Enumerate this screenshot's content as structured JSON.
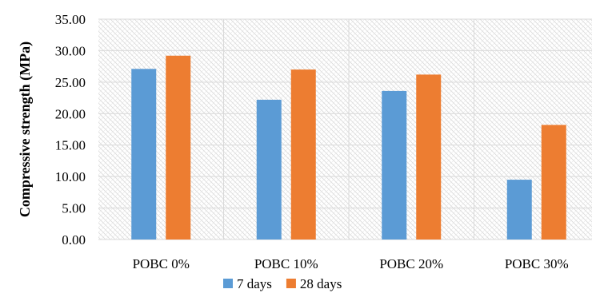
{
  "chart_data": {
    "type": "bar",
    "ylabel": "Compressive strength (MPa)",
    "xlabel": "",
    "categories": [
      "POBC 0%",
      "POBC 10%",
      "POBC 20%",
      "POBC 30%"
    ],
    "series": [
      {
        "name": "7 days",
        "color": "#5b9bd5",
        "values": [
          27.1,
          22.2,
          23.6,
          9.5
        ]
      },
      {
        "name": "28 days",
        "color": "#ed7d31",
        "values": [
          29.2,
          27.0,
          26.2,
          18.2
        ]
      }
    ],
    "ylim": [
      0,
      35
    ],
    "yticks": [
      "0.00",
      "5.00",
      "10.00",
      "15.00",
      "20.00",
      "25.00",
      "30.00",
      "35.00"
    ],
    "grid": true,
    "legend_position": "bottom"
  }
}
